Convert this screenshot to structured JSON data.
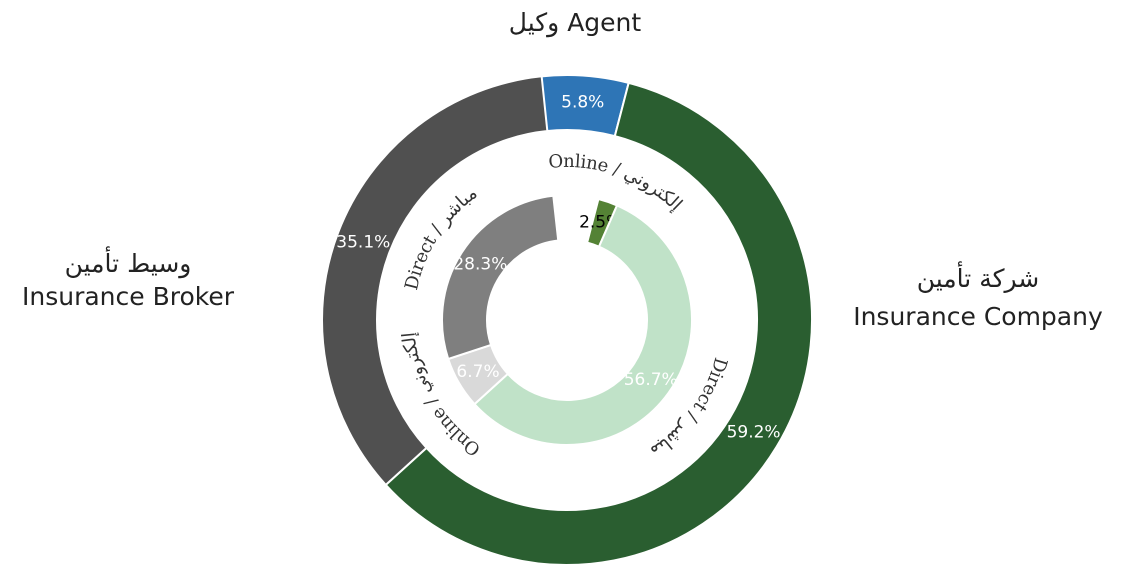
{
  "chart_data": {
    "type": "nested-donut",
    "outer": {
      "categories": [
        [
          "وكيل Agent"
        ],
        [
          "شركة تأمين",
          "Insurance Company"
        ],
        [
          "وسيط تأمين",
          "Insurance Broker"
        ]
      ],
      "values": [
        5.8,
        59.2,
        35.1
      ],
      "value_labels": [
        "5.8%",
        "59.2%",
        "35.1%"
      ],
      "colors": [
        "#2e75b6",
        "#2a5e30",
        "#505050"
      ]
    },
    "inner": {
      "names": [
        "Online / إلكتروني",
        "Direct / مباشر",
        "Online / إلكتروني",
        "Direct / مباشر"
      ],
      "values": [
        2.5,
        56.7,
        6.7,
        28.3
      ],
      "value_labels": [
        "2.5%",
        "56.7%",
        "6.7%",
        "28.3%"
      ],
      "colors": [
        "#548235",
        "#c0e2c8",
        "#d9d9d9",
        "#7f7f7f"
      ]
    }
  }
}
